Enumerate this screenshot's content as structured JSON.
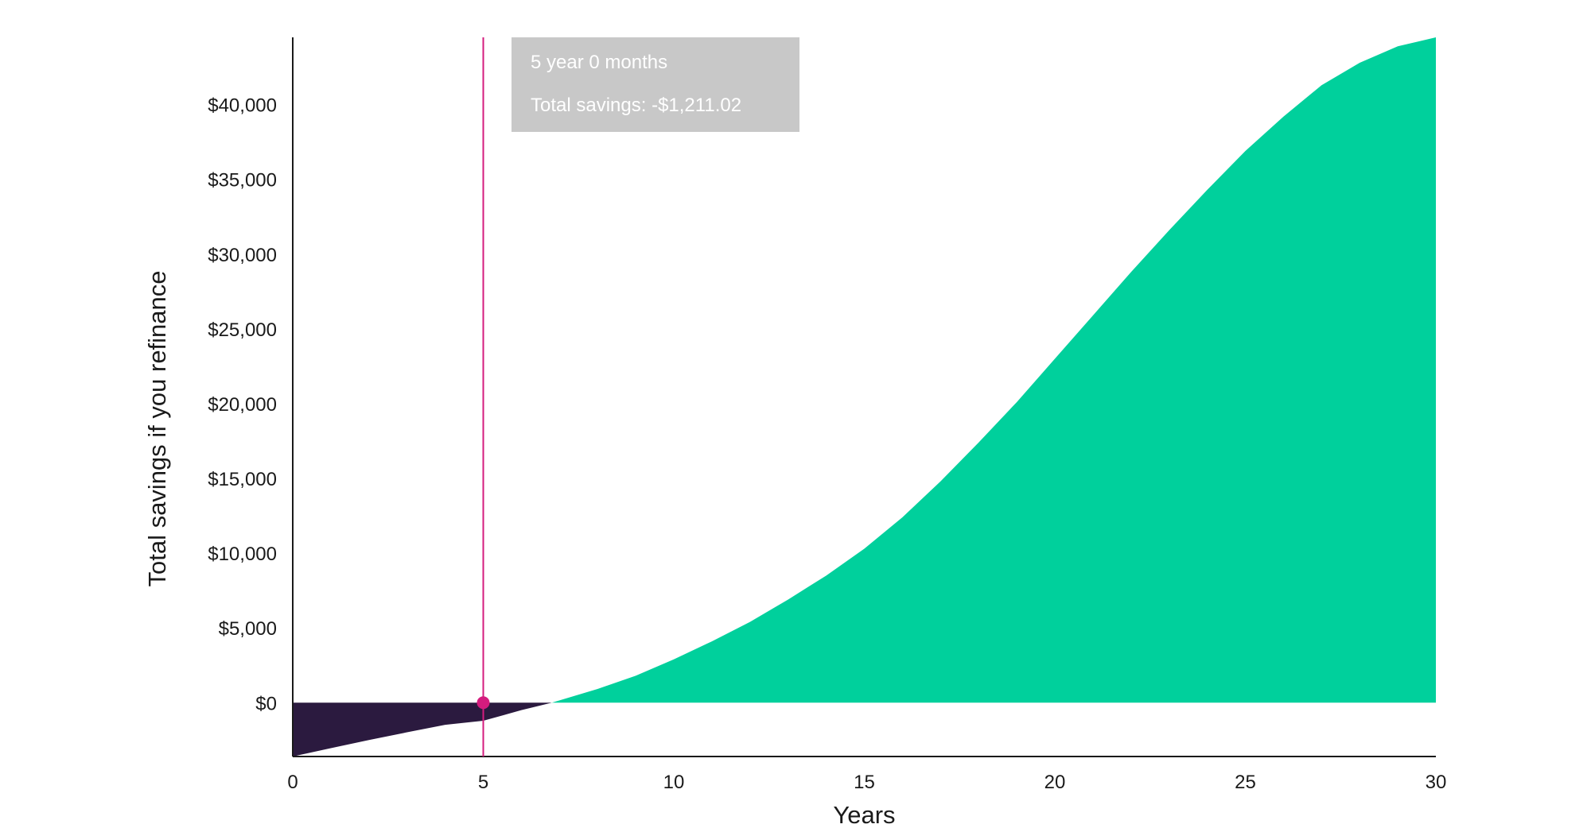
{
  "chart_data": {
    "type": "area",
    "title": "",
    "xlabel": "Years",
    "ylabel": "Total savings if you refinance",
    "xlim": [
      0,
      30
    ],
    "ylim": [
      -3600,
      44500
    ],
    "x_ticks": [
      0,
      5,
      10,
      15,
      20,
      25,
      30
    ],
    "x_tick_labels": [
      "0",
      "5",
      "10",
      "15",
      "20",
      "25",
      "30"
    ],
    "y_ticks": [
      0,
      5000,
      10000,
      15000,
      20000,
      25000,
      30000,
      35000,
      40000
    ],
    "y_tick_labels": [
      "$0",
      "$5,000",
      "$10,000",
      "$15,000",
      "$20,000",
      "$25,000",
      "$30,000",
      "$35,000",
      "$40,000"
    ],
    "series": [
      {
        "x": [
          0,
          1,
          2,
          3,
          4,
          5,
          6,
          6.8,
          8,
          9,
          10,
          11,
          12,
          13,
          14,
          15,
          16,
          17,
          18,
          19,
          20,
          21,
          22,
          23,
          24,
          25,
          26,
          27,
          28,
          29,
          30
        ],
        "y": [
          -3600,
          -3040,
          -2500,
          -1980,
          -1480,
          -1211,
          -500,
          0,
          920,
          1800,
          2900,
          4100,
          5400,
          6900,
          8500,
          10300,
          12400,
          14800,
          17400,
          20100,
          23000,
          25900,
          28800,
          31600,
          34300,
          36900,
          39200,
          41300,
          42800,
          43900,
          44500
        ]
      }
    ],
    "colors": {
      "positive": "#00d09c",
      "negative": "#2b1a3f",
      "marker": "#d41c7e",
      "axis": "#1a1a1a"
    },
    "marker": {
      "x": 5,
      "y": -1211.02
    }
  },
  "tooltip": {
    "line1": "5 year 0 months",
    "line2": "Total savings: -$1,211.02"
  }
}
